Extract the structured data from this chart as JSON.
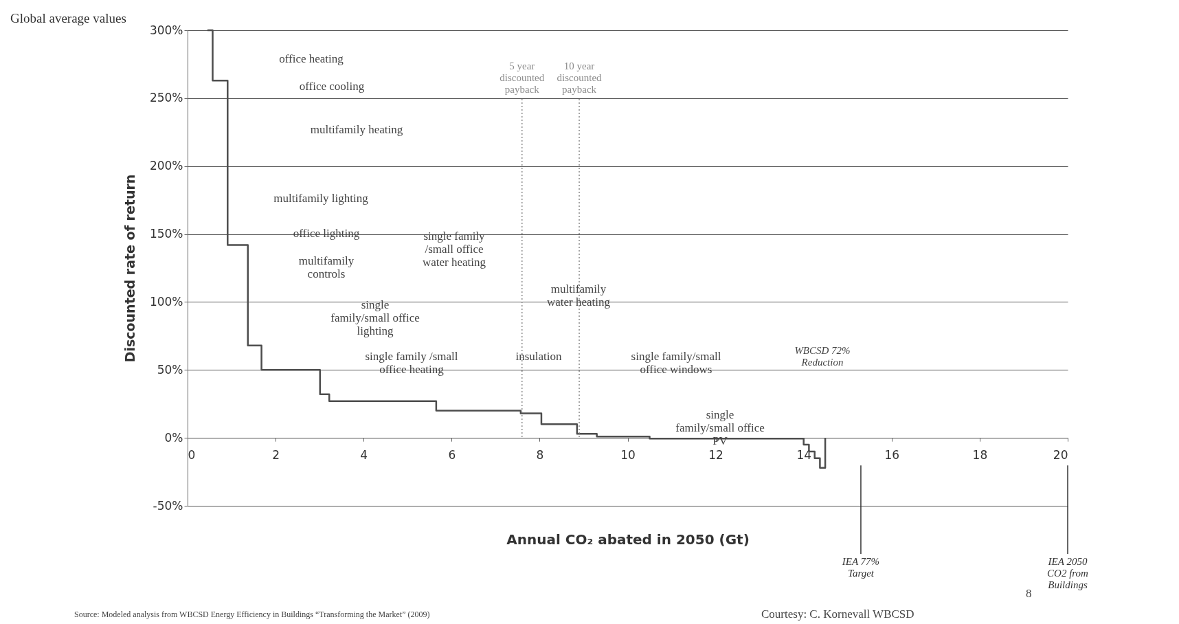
{
  "chart_data": {
    "type": "step",
    "title": "Global average values",
    "xlabel": "Annual CO₂ abated in 2050 (Gt)",
    "ylabel": "Discounted rate of return",
    "x": [
      0.45,
      0.57,
      0.91,
      1.37,
      1.68,
      3.01,
      3.22,
      5.65,
      6.17,
      7.57,
      7.7,
      8.04,
      8.85,
      9.3,
      10.5,
      14.0,
      14.12,
      14.25,
      14.37,
      14.49
    ],
    "series": [
      {
        "color": "#4d4d4d",
        "values": [
          300,
          263,
          142,
          68,
          50,
          32,
          27,
          20,
          20,
          18,
          18,
          10,
          3,
          1,
          -0.5,
          -5,
          -10,
          -15,
          -22,
          0
        ]
      }
    ],
    "xlim": [
      0,
      20
    ],
    "xticks": [
      0,
      2,
      4,
      6,
      8,
      10,
      12,
      14,
      16,
      18,
      20
    ],
    "ylim": [
      -50,
      300
    ],
    "yticks": [
      {
        "value": -50,
        "label": "-50%"
      },
      {
        "value": 0,
        "label": "0%"
      },
      {
        "value": 50,
        "label": "50%"
      },
      {
        "value": 100,
        "label": "100%"
      },
      {
        "value": 150,
        "label": "150%"
      },
      {
        "value": 200,
        "label": "200%"
      },
      {
        "value": 250,
        "label": "250%"
      },
      {
        "value": 300,
        "label": "300%"
      }
    ],
    "grid": "y",
    "marker": "none",
    "line_style": "solid",
    "ref_lines": [
      {
        "axis": "x",
        "value": 7.6,
        "label": "5 year\ndiscounted\npayback",
        "color": "#8c8c8c",
        "line_style": "dotted"
      },
      {
        "axis": "x",
        "value": 8.9,
        "label": "10 year\ndiscounted\npayback",
        "color": "#8c8c8c",
        "line_style": "dotted"
      },
      {
        "axis": "x",
        "value": 15.3,
        "label": "IEA 77%\nTarget",
        "color": "#333333",
        "line_style": "solid"
      },
      {
        "axis": "x",
        "value": 20,
        "label": "IEA 2050\nCO2 from\nBuildings",
        "color": "#333333",
        "line_style": "solid"
      }
    ],
    "annotations": [
      "office heating",
      "office cooling",
      "multifamily heating",
      "multifamily lighting",
      "office lighting",
      "multifamily\ncontrols",
      "single\nfamily/small office\nlighting",
      "single family /small\noffice heating",
      "single family\n/small office\nwater heating",
      "insulation",
      "multifamily\nwater heating",
      "single family/small\noffice windows",
      "single\nfamily/small office\nPV",
      "WBCSD 72%\nReduction",
      "Source: Modeled analysis from WBCSD Energy Efficiency in Buildings “Transforming the Market” (2009)",
      "Courtesy: C. Kornevall WBCSD",
      "8"
    ]
  }
}
